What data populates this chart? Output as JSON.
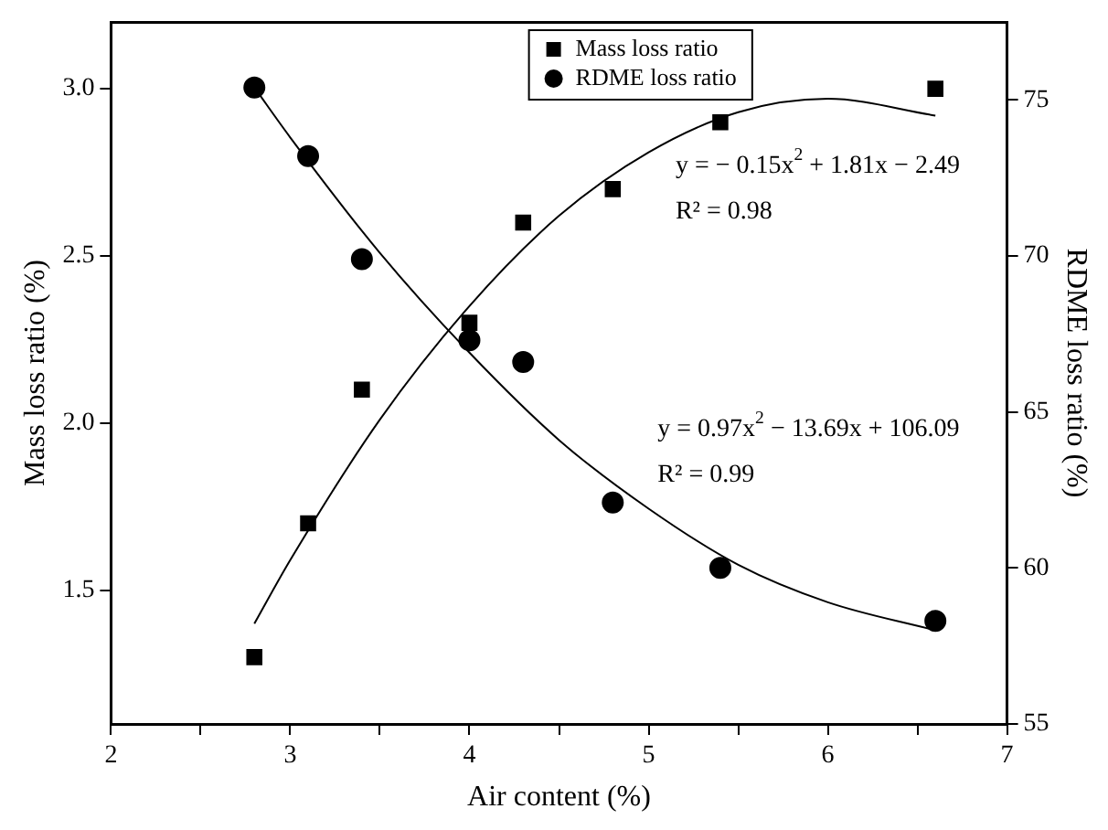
{
  "chart_data": {
    "type": "scatter",
    "xlabel": "Air content (%)",
    "ylabel": "Mass loss ratio (%)",
    "y2label": "RDME loss ratio (%)",
    "xlim": [
      2,
      7
    ],
    "xticks": [
      2,
      {
        "value": 2.5,
        "label": null
      },
      3,
      {
        "value": 3.5,
        "label": null
      },
      4,
      {
        "value": 4.5,
        "label": null
      },
      5,
      {
        "value": 5.5,
        "label": null
      },
      6,
      {
        "value": 6.5,
        "label": null
      },
      7
    ],
    "ylim": [
      1.1,
      3.2
    ],
    "yticks": [
      1.5,
      {
        "value": 2,
        "label": "2.0"
      },
      2.5,
      {
        "value": 3,
        "label": "3.0"
      }
    ],
    "y2lim": [
      55,
      77.5
    ],
    "y2ticks": [
      55,
      60,
      65,
      70,
      75
    ],
    "grid": false,
    "legend": "top",
    "tick_labels": [
      "x",
      "y",
      "y2"
    ],
    "series": [
      {
        "name": "Mass loss ratio",
        "marker": "square",
        "color": "#000000",
        "x": [
          2.8,
          3.1,
          3.4,
          4.0,
          4.3,
          4.8,
          5.4,
          6.6
        ],
        "values": [
          1.3,
          1.7,
          2.1,
          2.3,
          2.6,
          2.7,
          2.9,
          3.0
        ]
      },
      {
        "name": "RDME loss ratio",
        "marker": "circle",
        "axis": "y2",
        "color": "#000000",
        "x": [
          2.8,
          3.1,
          3.4,
          4.0,
          4.3,
          4.8,
          5.4,
          6.6
        ],
        "values": [
          75.4,
          73.2,
          69.9,
          67.3,
          66.6,
          62.1,
          60.0,
          58.3
        ]
      },
      {
        "type": "line",
        "marker": "none",
        "color": "#000000",
        "x": [
          2.8,
          3.0,
          3.5,
          4.0,
          4.5,
          5.0,
          5.5,
          6.0,
          6.6
        ],
        "values": [
          1.4,
          1.59,
          2.01,
          2.35,
          2.62,
          2.81,
          2.93,
          2.97,
          2.92
        ]
      },
      {
        "type": "line",
        "marker": "none",
        "axis": "y2",
        "color": "#000000",
        "x": [
          2.8,
          3.0,
          3.5,
          4.0,
          4.5,
          5.0,
          5.5,
          6.0,
          6.6
        ],
        "values": [
          75.4,
          73.8,
          70.1,
          66.9,
          64.1,
          61.9,
          60.1,
          58.9,
          58.0
        ]
      }
    ],
    "annotations": [
      "y = − 0.15x$^{2}$ + 1.81x − 2.49",
      "R² = 0.98",
      "y = 0.97x$^{2}$ − 13.69x + 106.09",
      "R² = 0.99"
    ]
  }
}
